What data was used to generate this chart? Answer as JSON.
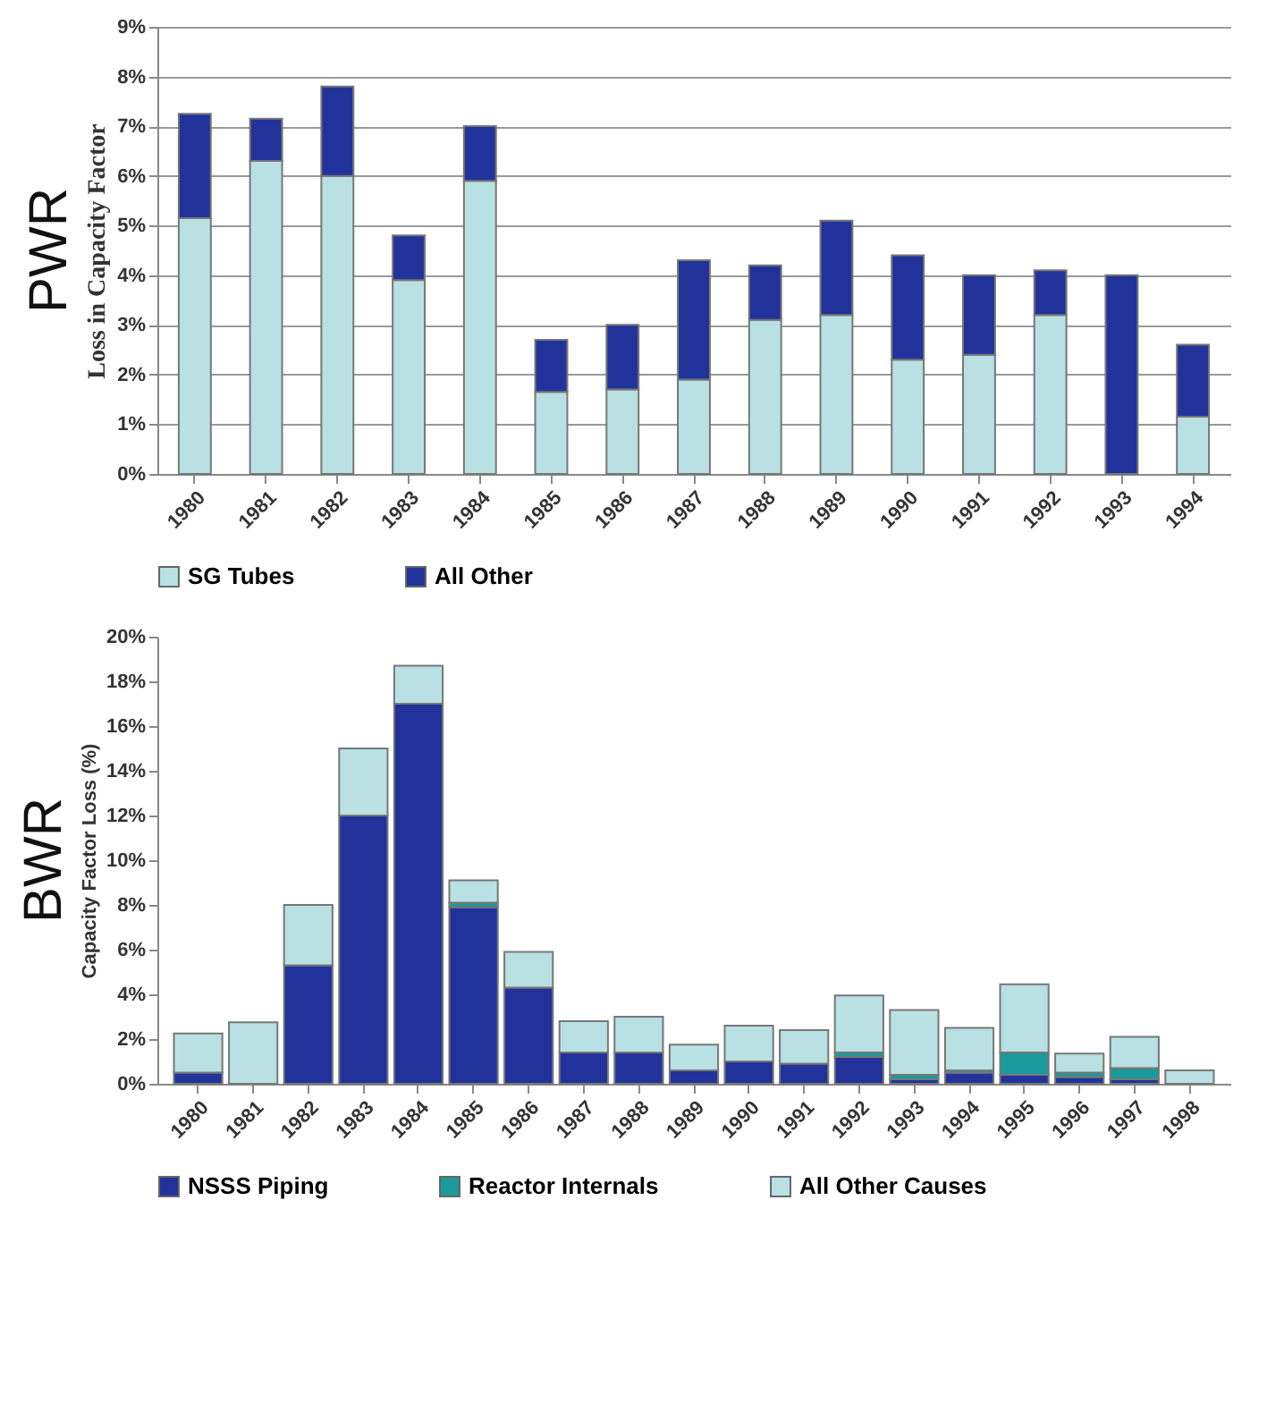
{
  "chart_data": [
    {
      "type": "bar",
      "title": "PWR",
      "ylabel": "Loss in Capacity Factor",
      "stacked": true,
      "grid": "y",
      "legend": "bottom",
      "categories": [
        "1980",
        "1981",
        "1982",
        "1983",
        "1984",
        "1985",
        "1986",
        "1987",
        "1988",
        "1989",
        "1990",
        "1991",
        "1992",
        "1993",
        "1994"
      ],
      "series": [
        {
          "name": "SG Tubes",
          "color": "#b9e1e3",
          "values": [
            5.15,
            6.3,
            6.0,
            3.9,
            5.9,
            1.65,
            1.7,
            1.9,
            3.1,
            3.2,
            2.3,
            2.4,
            3.2,
            0,
            1.15
          ]
        },
        {
          "name": "All Other",
          "color": "#21339a",
          "values": [
            2.1,
            0.85,
            1.8,
            0.9,
            1.1,
            1.05,
            1.3,
            2.4,
            1.1,
            1.9,
            2.1,
            1.6,
            0.9,
            4.0,
            1.45
          ]
        }
      ],
      "ylim": [
        0,
        9
      ],
      "yticks": [
        {
          "value": 0,
          "label": "0%"
        },
        {
          "value": 1,
          "label": "1%"
        },
        {
          "value": 2,
          "label": "2%"
        },
        {
          "value": 3,
          "label": "3%"
        },
        {
          "value": 4,
          "label": "4%"
        },
        {
          "value": 5,
          "label": "5%"
        },
        {
          "value": 6,
          "label": "6%"
        },
        {
          "value": 7,
          "label": "7%"
        },
        {
          "value": 8,
          "label": "8%"
        },
        {
          "value": 9,
          "label": "9%"
        }
      ]
    },
    {
      "type": "bar",
      "title": "BWR",
      "ylabel": "Capacity Factor Loss (%)",
      "stacked": true,
      "legend": "bottom",
      "categories": [
        "1980",
        "1981",
        "1982",
        "1983",
        "1984",
        "1985",
        "1986",
        "1987",
        "1988",
        "1989",
        "1990",
        "1991",
        "1992",
        "1993",
        "1994",
        "1995",
        "1996",
        "1997",
        "1998"
      ],
      "series": [
        {
          "name": "NSSS Piping",
          "color": "#21339a",
          "values": [
            0.5,
            0,
            5.3,
            12,
            17,
            7.9,
            4.3,
            1.4,
            1.4,
            0.6,
            1.0,
            0.9,
            1.2,
            0.2,
            0.5,
            0.4,
            0.3,
            0.2,
            null
          ]
        },
        {
          "name": "Reactor Internals",
          "color": "#1a9a9a",
          "values": [
            0,
            0,
            0,
            0,
            0,
            0.2,
            0,
            0,
            0,
            0,
            0,
            0,
            0.2,
            0.2,
            0.1,
            1.0,
            0.2,
            0.5,
            0
          ]
        },
        {
          "name": "All Other Causes",
          "color": "#b9e1e3",
          "values": [
            1.75,
            2.75,
            2.7,
            3.0,
            1.7,
            1.0,
            1.6,
            1.4,
            1.6,
            1.15,
            1.6,
            1.5,
            2.55,
            2.9,
            1.9,
            3.05,
            0.85,
            1.4,
            0.6
          ]
        }
      ],
      "ylim": [
        0,
        20
      ],
      "yticks": [
        {
          "value": 0,
          "label": "0%"
        },
        {
          "value": 2,
          "label": "2%"
        },
        {
          "value": 4,
          "label": "4%"
        },
        {
          "value": 6,
          "label": "6%"
        },
        {
          "value": 8,
          "label": "8%"
        },
        {
          "value": 10,
          "label": "10%"
        },
        {
          "value": 12,
          "label": "12%"
        },
        {
          "value": 14,
          "label": "14%"
        },
        {
          "value": 16,
          "label": "16%"
        },
        {
          "value": 18,
          "label": "18%"
        },
        {
          "value": 20,
          "label": "20%"
        }
      ]
    }
  ]
}
